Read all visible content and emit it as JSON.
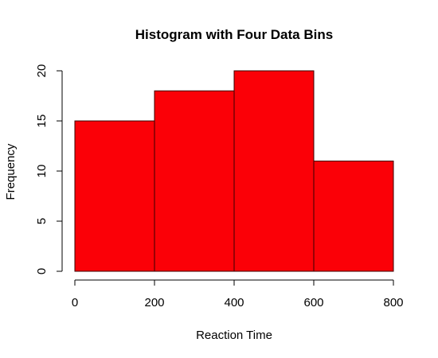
{
  "chart_data": {
    "type": "bar",
    "title": "Histogram with Four Data Bins",
    "xlabel": "Reaction Time",
    "ylabel": "Frequency",
    "bins": [
      {
        "start": 0,
        "end": 200,
        "value": 15
      },
      {
        "start": 200,
        "end": 400,
        "value": 18
      },
      {
        "start": 400,
        "end": 600,
        "value": 20
      },
      {
        "start": 600,
        "end": 800,
        "value": 11
      }
    ],
    "xlim": [
      0,
      800
    ],
    "ylim": [
      0,
      20
    ],
    "x_ticks": [
      0,
      200,
      400,
      600,
      800
    ],
    "y_ticks": [
      0,
      5,
      10,
      15,
      20
    ],
    "x_tick_labels": [
      "0",
      "200",
      "400",
      "600",
      "800"
    ],
    "y_tick_labels": [
      "0",
      "5",
      "10",
      "15",
      "20"
    ],
    "grid": false,
    "legend": "none",
    "bar_color": "#fb0007",
    "border_color": "#3a0000"
  }
}
